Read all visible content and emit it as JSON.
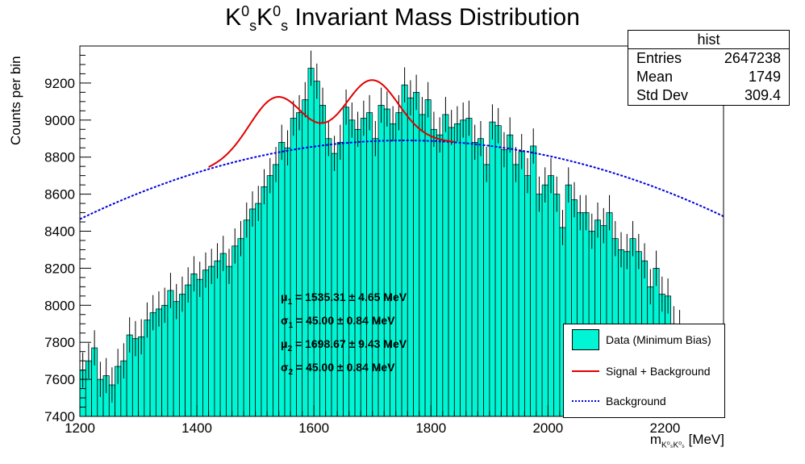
{
  "title": {
    "main": "K",
    "sup1": "0",
    "sub1": "s",
    "mid": "K",
    "sup2": "0",
    "sub2": "s",
    "rest": " Invariant Mass Distribution"
  },
  "axes": {
    "ylabel": "Counts per bin",
    "xlabel_prefix": "m",
    "xlabel_sub": "K⁰ₛK⁰ₛ",
    "xlabel_unit": " [MeV]",
    "xticks": [
      "1200",
      "1400",
      "1600",
      "1800",
      "2000",
      "2200"
    ],
    "yticks": [
      "7400",
      "7600",
      "7800",
      "8000",
      "8200",
      "8400",
      "8600",
      "8800",
      "9000",
      "9200"
    ]
  },
  "stats": {
    "header": "hist",
    "rows": [
      {
        "label": "Entries",
        "value": "2647238"
      },
      {
        "label": "Mean",
        "value": "1749"
      },
      {
        "label": "Std Dev",
        "value": "309.4"
      }
    ]
  },
  "annotations": [
    {
      "sym": "μ",
      "sub": "1",
      "text": " = 1535.31 ± 4.65 MeV"
    },
    {
      "sym": "σ",
      "sub": "1",
      "text": " = 45.00 ± 0.84 MeV"
    },
    {
      "sym": "μ",
      "sub": "2",
      "text": " = 1698.67 ± 9.43 MeV"
    },
    {
      "sym": "σ",
      "sub": "2",
      "text": " = 45.00 ± 0.84 MeV"
    }
  ],
  "legend": [
    {
      "label": "Data (Minimum Bias)"
    },
    {
      "label": "Signal + Background"
    },
    {
      "label": "Background"
    }
  ],
  "colors": {
    "fill": "#00f5d4",
    "signal": "#e00000",
    "background": "#0000dd"
  },
  "chart_data": {
    "type": "bar",
    "xlim": [
      1200,
      2300
    ],
    "ylim": [
      7400,
      9400
    ],
    "bin_width": 10,
    "x": [
      1205,
      1215,
      1225,
      1235,
      1245,
      1255,
      1265,
      1275,
      1285,
      1295,
      1305,
      1315,
      1325,
      1335,
      1345,
      1355,
      1365,
      1375,
      1385,
      1395,
      1405,
      1415,
      1425,
      1435,
      1445,
      1455,
      1465,
      1475,
      1485,
      1495,
      1505,
      1515,
      1525,
      1535,
      1545,
      1555,
      1565,
      1575,
      1585,
      1595,
      1605,
      1615,
      1625,
      1635,
      1645,
      1655,
      1665,
      1675,
      1685,
      1695,
      1705,
      1715,
      1725,
      1735,
      1745,
      1755,
      1765,
      1775,
      1785,
      1795,
      1805,
      1815,
      1825,
      1835,
      1845,
      1855,
      1865,
      1875,
      1885,
      1895,
      1905,
      1915,
      1925,
      1935,
      1945,
      1955,
      1965,
      1975,
      1985,
      1995,
      2005,
      2015,
      2025,
      2035,
      2045,
      2055,
      2065,
      2075,
      2085,
      2095,
      2105,
      2115,
      2125,
      2135,
      2145,
      2155,
      2165,
      2175,
      2185,
      2195,
      2205,
      2215,
      2225,
      2235,
      2245
    ],
    "values": [
      7650,
      7700,
      7770,
      7600,
      7620,
      7570,
      7670,
      7700,
      7840,
      7820,
      7830,
      7920,
      7960,
      7980,
      8000,
      8080,
      8020,
      8060,
      8110,
      8170,
      8140,
      8190,
      8210,
      8240,
      8280,
      8210,
      8320,
      8360,
      8460,
      8520,
      8550,
      8640,
      8700,
      8760,
      8880,
      8850,
      9010,
      9040,
      9110,
      9280,
      9210,
      9080,
      8900,
      8820,
      8880,
      9070,
      9000,
      8950,
      9010,
      9040,
      8900,
      9080,
      9060,
      8980,
      9040,
      9190,
      9120,
      9150,
      9030,
      9110,
      8950,
      8920,
      9030,
      8960,
      8980,
      9000,
      9010,
      8880,
      8900,
      8760,
      8990,
      8970,
      8840,
      8920,
      8760,
      8830,
      8700,
      8860,
      8600,
      8650,
      8700,
      8600,
      8420,
      8650,
      8570,
      8500,
      8500,
      8400,
      8460,
      8430,
      8500,
      8360,
      8300,
      8290,
      8360,
      8290,
      8240,
      8100,
      8200,
      8060,
      8050,
      7900,
      7880,
      7760,
      7780
    ],
    "errors": [
      95,
      95,
      95,
      95,
      95,
      95,
      95,
      95,
      95,
      95,
      95,
      95,
      95,
      95,
      95,
      95,
      95,
      95,
      95,
      95,
      95,
      95,
      95,
      95,
      95,
      95,
      95,
      95,
      95,
      95,
      95,
      95,
      95,
      95,
      95,
      95,
      95,
      95,
      95,
      95,
      95,
      95,
      95,
      95,
      95,
      95,
      95,
      95,
      95,
      95,
      95,
      95,
      95,
      95,
      95,
      95,
      95,
      95,
      95,
      95,
      95,
      95,
      95,
      95,
      95,
      95,
      95,
      95,
      95,
      95,
      95,
      95,
      95,
      95,
      95,
      95,
      95,
      95,
      95,
      95,
      95,
      95,
      95,
      95,
      95,
      95,
      95,
      95,
      95,
      95,
      95,
      95,
      95,
      95,
      95,
      95,
      95,
      95,
      95,
      95,
      95,
      95,
      95,
      95,
      95
    ],
    "fit_signal": {
      "mu1": 1535.31,
      "sigma1": 45.0,
      "mu2": 1698.67,
      "sigma2": 45.0,
      "amp1": 300,
      "amp2": 330
    },
    "fit_background": {
      "type": "quadratic",
      "peak_x": 1755,
      "peak_y": 8890,
      "curvature": 0.00138
    }
  }
}
